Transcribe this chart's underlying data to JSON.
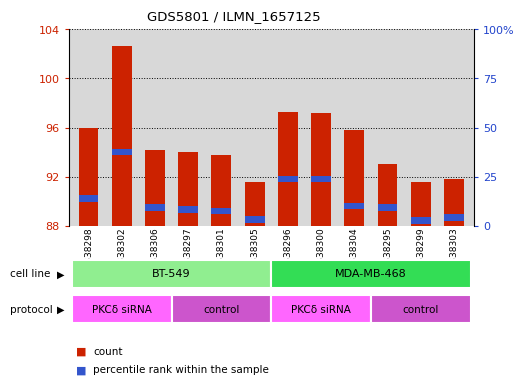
{
  "title": "GDS5801 / ILMN_1657125",
  "samples": [
    "GSM1338298",
    "GSM1338302",
    "GSM1338306",
    "GSM1338297",
    "GSM1338301",
    "GSM1338305",
    "GSM1338296",
    "GSM1338300",
    "GSM1338304",
    "GSM1338295",
    "GSM1338299",
    "GSM1338303"
  ],
  "red_values": [
    96.0,
    102.6,
    94.2,
    94.0,
    93.8,
    91.6,
    97.3,
    97.2,
    95.8,
    93.0,
    91.6,
    91.8
  ],
  "blue_values": [
    90.2,
    94.0,
    89.5,
    89.3,
    89.2,
    88.5,
    91.8,
    91.8,
    89.6,
    89.5,
    88.4,
    88.7
  ],
  "bar_bottom": 88.0,
  "ylim_left": [
    88,
    104
  ],
  "ylim_right": [
    0,
    100
  ],
  "yticks_left": [
    88,
    92,
    96,
    100,
    104
  ],
  "yticks_right": [
    0,
    25,
    50,
    75,
    100
  ],
  "ytick_labels_right": [
    "0",
    "25",
    "50",
    "75",
    "100%"
  ],
  "cell_line_groups": [
    {
      "label": "BT-549",
      "start": 0,
      "end": 5,
      "color": "#90EE90"
    },
    {
      "label": "MDA-MB-468",
      "start": 6,
      "end": 11,
      "color": "#33DD55"
    }
  ],
  "protocol_groups": [
    {
      "label": "PKCδ siRNA",
      "start": 0,
      "end": 2,
      "color": "#FF66FF"
    },
    {
      "label": "control",
      "start": 3,
      "end": 5,
      "color": "#CC55CC"
    },
    {
      "label": "PKCδ siRNA",
      "start": 6,
      "end": 8,
      "color": "#FF66FF"
    },
    {
      "label": "control",
      "start": 9,
      "end": 11,
      "color": "#CC55CC"
    }
  ],
  "bar_color_red": "#CC2200",
  "bar_color_blue": "#3355CC",
  "bg_color": "#D8D8D8",
  "grid_color": "#000000",
  "tick_color_left": "#CC2200",
  "tick_color_right": "#2244CC",
  "bar_width": 0.6,
  "blue_bar_height": 0.55
}
